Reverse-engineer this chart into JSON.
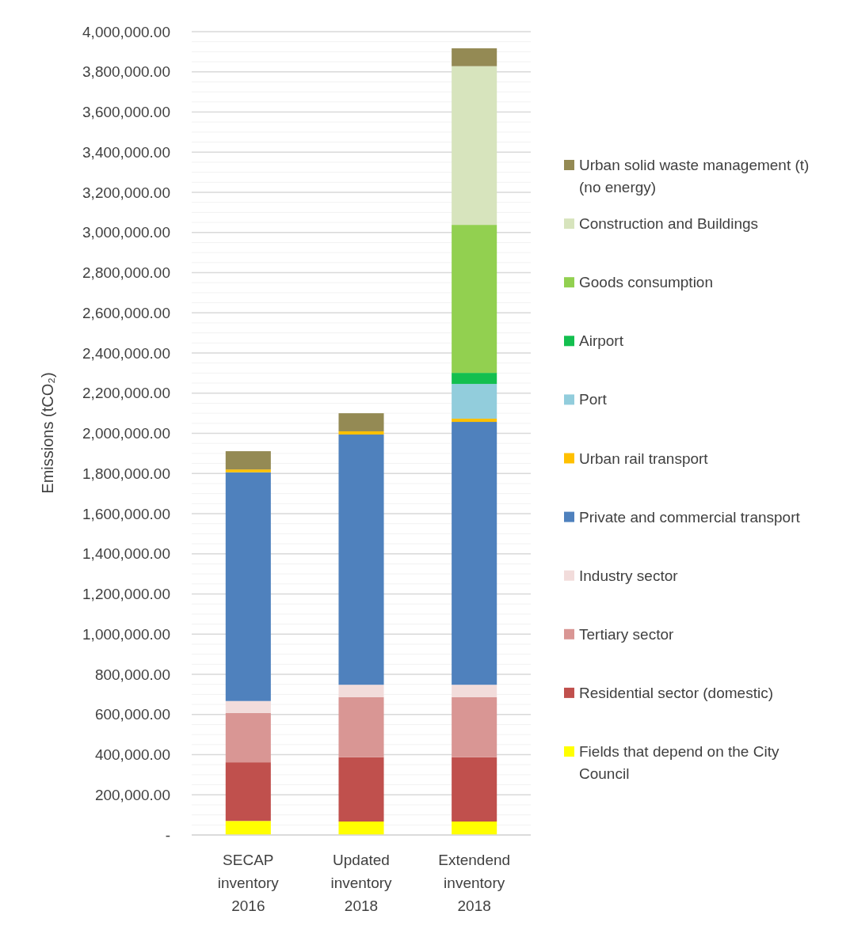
{
  "chart_data": {
    "type": "bar",
    "stacked": true,
    "ylabel": "Emissions (tCO₂)",
    "categories": [
      "SECAP inventory 2016",
      "Updated inventory 2018",
      "Extendend inventory 2018"
    ],
    "series": [
      {
        "name": "Fields that depend on the City Council",
        "color": "#ffff00",
        "values": [
          70000,
          67000,
          67000
        ]
      },
      {
        "name": "Residential sector (domestic)",
        "color": "#c0504d",
        "values": [
          292000,
          320000,
          320000
        ]
      },
      {
        "name": "Tertiary sector",
        "color": "#d99694",
        "values": [
          245000,
          299000,
          299000
        ]
      },
      {
        "name": "Industry sector",
        "color": "#f2dcdb",
        "values": [
          60000,
          62000,
          62000
        ]
      },
      {
        "name": "Private and commercial transport",
        "color": "#4f81bd",
        "values": [
          1139000,
          1246000,
          1309000
        ]
      },
      {
        "name": "Urban rail transport",
        "color": "#ffc000",
        "values": [
          14000,
          16000,
          16000
        ]
      },
      {
        "name": "Port",
        "color": "#92cddc",
        "values": [
          null,
          null,
          173000
        ]
      },
      {
        "name": "Airport",
        "color": "#13bf4f",
        "values": [
          null,
          null,
          55000
        ]
      },
      {
        "name": "Goods consumption",
        "color": "#92d050",
        "values": [
          null,
          null,
          737000
        ]
      },
      {
        "name": "Construction and Buildings",
        "color": "#d7e4bd",
        "values": [
          null,
          null,
          790000
        ]
      },
      {
        "name": "Urban solid waste management (t) (no energy)",
        "color": "#948a54",
        "values": [
          91000,
          90000,
          89000
        ]
      }
    ],
    "ylim": [
      0,
      4000000
    ],
    "yticks": [
      {
        "value": 0,
        "label": "-"
      },
      {
        "value": 50000,
        "label": null
      },
      {
        "value": 100000,
        "label": null
      },
      {
        "value": 150000,
        "label": null
      },
      {
        "value": 200000,
        "label": "200,000.00"
      },
      {
        "value": 250000,
        "label": null
      },
      {
        "value": 300000,
        "label": null
      },
      {
        "value": 350000,
        "label": null
      },
      {
        "value": 400000,
        "label": "400,000.00"
      },
      {
        "value": 450000,
        "label": null
      },
      {
        "value": 500000,
        "label": null
      },
      {
        "value": 550000,
        "label": null
      },
      {
        "value": 600000,
        "label": "600,000.00"
      },
      {
        "value": 650000,
        "label": null
      },
      {
        "value": 700000,
        "label": null
      },
      {
        "value": 750000,
        "label": null
      },
      {
        "value": 800000,
        "label": "800,000.00"
      },
      {
        "value": 850000,
        "label": null
      },
      {
        "value": 900000,
        "label": null
      },
      {
        "value": 950000,
        "label": null
      },
      {
        "value": 1000000,
        "label": "1,000,000.00"
      },
      {
        "value": 1050000,
        "label": null
      },
      {
        "value": 1100000,
        "label": null
      },
      {
        "value": 1150000,
        "label": null
      },
      {
        "value": 1200000,
        "label": "1,200,000.00"
      },
      {
        "value": 1250000,
        "label": null
      },
      {
        "value": 1300000,
        "label": null
      },
      {
        "value": 1350000,
        "label": null
      },
      {
        "value": 1400000,
        "label": "1,400,000.00"
      },
      {
        "value": 1450000,
        "label": null
      },
      {
        "value": 1500000,
        "label": null
      },
      {
        "value": 1550000,
        "label": null
      },
      {
        "value": 1600000,
        "label": "1,600,000.00"
      },
      {
        "value": 1650000,
        "label": null
      },
      {
        "value": 1700000,
        "label": null
      },
      {
        "value": 1750000,
        "label": null
      },
      {
        "value": 1800000,
        "label": "1,800,000.00"
      },
      {
        "value": 1850000,
        "label": null
      },
      {
        "value": 1900000,
        "label": null
      },
      {
        "value": 1950000,
        "label": null
      },
      {
        "value": 2000000,
        "label": "2,000,000.00"
      },
      {
        "value": 2050000,
        "label": null
      },
      {
        "value": 2100000,
        "label": null
      },
      {
        "value": 2150000,
        "label": null
      },
      {
        "value": 2200000,
        "label": "2,200,000.00"
      },
      {
        "value": 2250000,
        "label": null
      },
      {
        "value": 2300000,
        "label": null
      },
      {
        "value": 2350000,
        "label": null
      },
      {
        "value": 2400000,
        "label": "2,400,000.00"
      },
      {
        "value": 2450000,
        "label": null
      },
      {
        "value": 2500000,
        "label": null
      },
      {
        "value": 2550000,
        "label": null
      },
      {
        "value": 2600000,
        "label": "2,600,000.00"
      },
      {
        "value": 2650000,
        "label": null
      },
      {
        "value": 2700000,
        "label": null
      },
      {
        "value": 2750000,
        "label": null
      },
      {
        "value": 2800000,
        "label": "2,800,000.00"
      },
      {
        "value": 2850000,
        "label": null
      },
      {
        "value": 2900000,
        "label": null
      },
      {
        "value": 2950000,
        "label": null
      },
      {
        "value": 3000000,
        "label": "3,000,000.00"
      },
      {
        "value": 3050000,
        "label": null
      },
      {
        "value": 3100000,
        "label": null
      },
      {
        "value": 3150000,
        "label": null
      },
      {
        "value": 3200000,
        "label": "3,200,000.00"
      },
      {
        "value": 3250000,
        "label": null
      },
      {
        "value": 3300000,
        "label": null
      },
      {
        "value": 3350000,
        "label": null
      },
      {
        "value": 3400000,
        "label": "3,400,000.00"
      },
      {
        "value": 3450000,
        "label": null
      },
      {
        "value": 3500000,
        "label": null
      },
      {
        "value": 3550000,
        "label": null
      },
      {
        "value": 3600000,
        "label": "3,600,000.00"
      },
      {
        "value": 3650000,
        "label": null
      },
      {
        "value": 3700000,
        "label": null
      },
      {
        "value": 3750000,
        "label": null
      },
      {
        "value": 3800000,
        "label": "3,800,000.00"
      },
      {
        "value": 3850000,
        "label": null
      },
      {
        "value": 3900000,
        "label": null
      },
      {
        "value": 3950000,
        "label": null
      },
      {
        "value": 4000000,
        "label": "4,000,000.00"
      }
    ],
    "grid": true,
    "legend": "right"
  }
}
